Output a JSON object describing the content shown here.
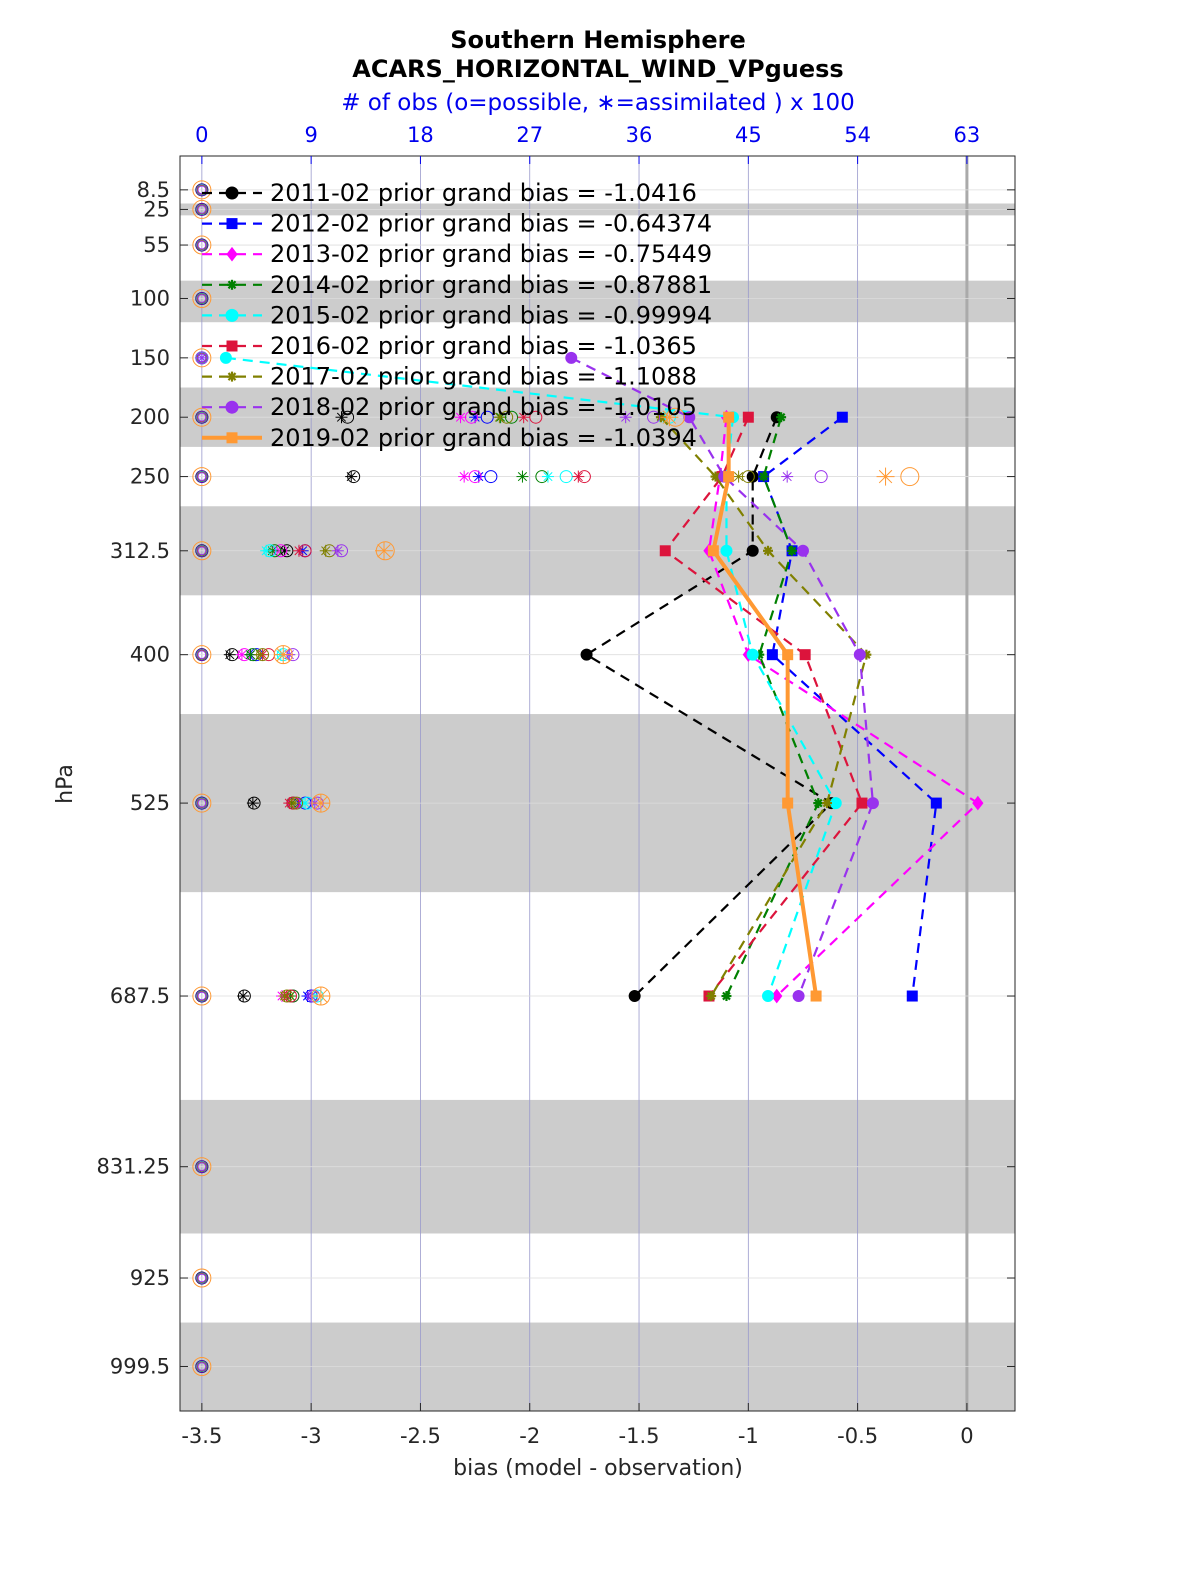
{
  "chart_data": {
    "type": "line",
    "title": "Southern Hemisphere",
    "subtitle": "ACARS_HORIZONTAL_WIND_VPguess",
    "top_axis_label": "# of obs (o=possible, ∗=assimilated ) x 100",
    "xlabel": "bias (model - observation)",
    "ylabel": "hPa",
    "xlim": [
      -3.6,
      0.22
    ],
    "x_ticks": [
      "-3.5",
      "-3",
      "-2.5",
      "-2",
      "-1.5",
      "-1",
      "-0.5",
      "0"
    ],
    "top_ticks": [
      "0",
      "9",
      "18",
      "27",
      "36",
      "45",
      "54",
      "63"
    ],
    "top_xlim": [
      0,
      63
    ],
    "levels": [
      "8.5",
      "25",
      "55",
      "100",
      "150",
      "200",
      "250",
      "312.5",
      "400",
      "525",
      "687.5",
      "831.25",
      "925",
      "999.5"
    ],
    "grid": true,
    "legend_position": "top-left",
    "shaded_bands": [
      [
        20,
        30
      ],
      [
        85,
        120
      ],
      [
        175,
        225
      ],
      [
        275,
        350
      ],
      [
        450,
        600
      ],
      [
        775,
        887.5
      ],
      [
        962.5,
        1037
      ]
    ],
    "series": [
      {
        "name": "2011-02 prior grand bias = -1.0416",
        "color": "#000000",
        "marker": "circle",
        "style": "dashed",
        "points": [
          [
            -0.87,
            200
          ],
          [
            -0.98,
            250
          ],
          [
            -0.98,
            312.5
          ],
          [
            -1.74,
            400
          ],
          [
            -0.62,
            525
          ],
          [
            -1.52,
            687.5
          ]
        ],
        "possible": [
          [
            12,
            200
          ],
          [
            12.5,
            250
          ],
          [
            7,
            312.5
          ],
          [
            2.5,
            400
          ],
          [
            4.3,
            525
          ],
          [
            3.5,
            687.5
          ]
        ],
        "assimilated": [
          [
            11.5,
            200
          ],
          [
            12.3,
            250
          ],
          [
            6.8,
            312.5
          ],
          [
            2.3,
            400
          ],
          [
            4.2,
            525
          ],
          [
            3.4,
            687.5
          ]
        ]
      },
      {
        "name": "2012-02 prior grand bias = -0.64374",
        "color": "#0000ff",
        "marker": "square",
        "style": "dashed",
        "points": [
          [
            -0.57,
            200
          ],
          [
            -0.93,
            250
          ],
          [
            -0.8,
            312.5
          ],
          [
            -0.89,
            400
          ],
          [
            -0.14,
            525
          ],
          [
            -0.25,
            687.5
          ]
        ],
        "possible": [
          [
            23.5,
            200
          ],
          [
            23.8,
            250
          ],
          [
            8.5,
            312.5
          ],
          [
            4.5,
            400
          ],
          [
            8.5,
            525
          ],
          [
            9,
            687.5
          ]
        ],
        "assimilated": [
          [
            22.5,
            200
          ],
          [
            22.8,
            250
          ],
          [
            8.3,
            312.5
          ],
          [
            4,
            400
          ],
          [
            8,
            525
          ],
          [
            8.7,
            687.5
          ]
        ]
      },
      {
        "name": "2013-02 prior grand bias = -0.75449",
        "color": "#ff00ff",
        "marker": "diamond",
        "style": "dashed",
        "points": [
          [
            -1.1,
            200
          ],
          [
            -1.13,
            250
          ],
          [
            -1.18,
            312.5
          ],
          [
            -1.0,
            400
          ],
          [
            0.05,
            525
          ],
          [
            -0.87,
            687.5
          ]
        ],
        "possible": [
          [
            22.2,
            200
          ],
          [
            22.5,
            250
          ],
          [
            6.5,
            312.5
          ],
          [
            3.5,
            400
          ],
          [
            7.6,
            525
          ],
          [
            7.5,
            687.5
          ]
        ],
        "assimilated": [
          [
            21.3,
            200
          ],
          [
            21.6,
            250
          ],
          [
            6.2,
            312.5
          ],
          [
            3.3,
            400
          ],
          [
            7.4,
            525
          ],
          [
            6.6,
            687.5
          ]
        ]
      },
      {
        "name": "2014-02 prior grand bias = -0.87881",
        "color": "#008000",
        "marker": "hexagram",
        "style": "dashed",
        "points": [
          [
            -0.85,
            200
          ],
          [
            -0.93,
            250
          ],
          [
            -0.8,
            312.5
          ],
          [
            -0.95,
            400
          ],
          [
            -0.68,
            525
          ],
          [
            -1.1,
            687.5
          ]
        ],
        "possible": [
          [
            25.5,
            200
          ],
          [
            28,
            250
          ],
          [
            6,
            312.5
          ],
          [
            4.2,
            400
          ],
          [
            7.5,
            525
          ],
          [
            7.5,
            687.5
          ]
        ],
        "assimilated": [
          [
            24.6,
            200
          ],
          [
            26.4,
            250
          ],
          [
            5.8,
            312.5
          ],
          [
            4,
            400
          ],
          [
            7.4,
            525
          ],
          [
            7.3,
            687.5
          ]
        ]
      },
      {
        "name": "2015-02 prior grand bias = -0.99994",
        "color": "#00ffff",
        "marker": "circle",
        "style": "dashed",
        "points": [
          [
            -3.39,
            150
          ],
          [
            -1.07,
            200
          ],
          [
            -1.1,
            250
          ],
          [
            -1.1,
            312.5
          ],
          [
            -0.98,
            400
          ],
          [
            -0.6,
            525
          ],
          [
            -0.91,
            687.5
          ]
        ],
        "possible": [
          [
            0,
            150
          ],
          [
            38.5,
            200
          ],
          [
            30,
            250
          ],
          [
            5.6,
            312.5
          ],
          [
            6.7,
            400
          ],
          [
            8.7,
            525
          ],
          [
            9.5,
            687.5
          ]
        ],
        "assimilated": [
          [
            0,
            150
          ],
          [
            38,
            200
          ],
          [
            28.5,
            250
          ],
          [
            5.3,
            312.5
          ],
          [
            6.5,
            400
          ],
          [
            8.5,
            525
          ],
          [
            9.3,
            687.5
          ]
        ]
      },
      {
        "name": "2016-02 prior grand bias = -1.0365",
        "color": "#dc143c",
        "marker": "square",
        "style": "dashed",
        "points": [
          [
            -1.0,
            200
          ],
          [
            -1.12,
            250
          ],
          [
            -1.38,
            312.5
          ],
          [
            -0.74,
            400
          ],
          [
            -0.48,
            525
          ],
          [
            -1.18,
            687.5
          ]
        ],
        "possible": [
          [
            27.5,
            200
          ],
          [
            31.5,
            250
          ],
          [
            8.5,
            312.5
          ],
          [
            5.5,
            400
          ],
          [
            7.5,
            525
          ],
          [
            7.3,
            687.5
          ]
        ],
        "assimilated": [
          [
            26.5,
            200
          ],
          [
            31,
            250
          ],
          [
            8,
            312.5
          ],
          [
            5,
            400
          ],
          [
            7.2,
            525
          ],
          [
            7,
            687.5
          ]
        ]
      },
      {
        "name": "2017-02 prior grand bias = -1.1088",
        "color": "#808000",
        "marker": "star",
        "style": "dashed",
        "points": [
          [
            -1.4,
            200
          ],
          [
            -1.15,
            250
          ],
          [
            -0.91,
            312.5
          ],
          [
            -0.46,
            400
          ],
          [
            -0.64,
            525
          ],
          [
            -1.17,
            687.5
          ]
        ],
        "possible": [
          [
            25.1,
            200
          ],
          [
            45,
            250
          ],
          [
            10.5,
            312.5
          ],
          [
            5,
            400
          ],
          [
            7.8,
            525
          ],
          [
            7,
            687.5
          ]
        ],
        "assimilated": [
          [
            24.5,
            200
          ],
          [
            44.2,
            250
          ],
          [
            10.2,
            312.5
          ],
          [
            4.8,
            400
          ],
          [
            7.6,
            525
          ],
          [
            6.8,
            687.5
          ]
        ]
      },
      {
        "name": "2018-02 prior grand bias = -1.0105",
        "color": "#9932ee",
        "marker": "circle",
        "style": "dashed",
        "points": [
          [
            -1.81,
            150
          ],
          [
            -1.27,
            200
          ],
          [
            -1.11,
            250
          ],
          [
            -0.75,
            312.5
          ],
          [
            -0.49,
            400
          ],
          [
            -0.43,
            525
          ],
          [
            -0.77,
            687.5
          ]
        ],
        "possible": [
          [
            0,
            150
          ],
          [
            37.2,
            200
          ],
          [
            51,
            250
          ],
          [
            11.5,
            312.5
          ],
          [
            7.5,
            400
          ],
          [
            9.5,
            525
          ],
          [
            9.2,
            687.5
          ]
        ],
        "assimilated": [
          [
            0,
            150
          ],
          [
            34.9,
            200
          ],
          [
            48.2,
            250
          ],
          [
            11.2,
            312.5
          ],
          [
            7.2,
            400
          ],
          [
            9.3,
            525
          ],
          [
            9,
            687.5
          ]
        ]
      },
      {
        "name": "2019-02 prior grand bias = -1.0394",
        "color": "#ff9933",
        "marker": "square",
        "style": "solid",
        "points": [
          [
            -1.09,
            200
          ],
          [
            -1.09,
            250
          ],
          [
            -1.16,
            312.5
          ],
          [
            -0.82,
            400
          ],
          [
            -0.82,
            525
          ],
          [
            -0.69,
            687.5
          ]
        ],
        "possible": [
          [
            39,
            200
          ],
          [
            58.3,
            250
          ],
          [
            15.1,
            312.5
          ],
          [
            6.7,
            400
          ],
          [
            9.8,
            525
          ],
          [
            9.8,
            687.5
          ]
        ],
        "assimilated": [
          [
            38.5,
            200
          ],
          [
            56.3,
            250
          ],
          [
            15,
            312.5
          ],
          [
            6.7,
            400
          ],
          [
            9.8,
            525
          ],
          [
            9.8,
            687.5
          ]
        ]
      }
    ]
  }
}
